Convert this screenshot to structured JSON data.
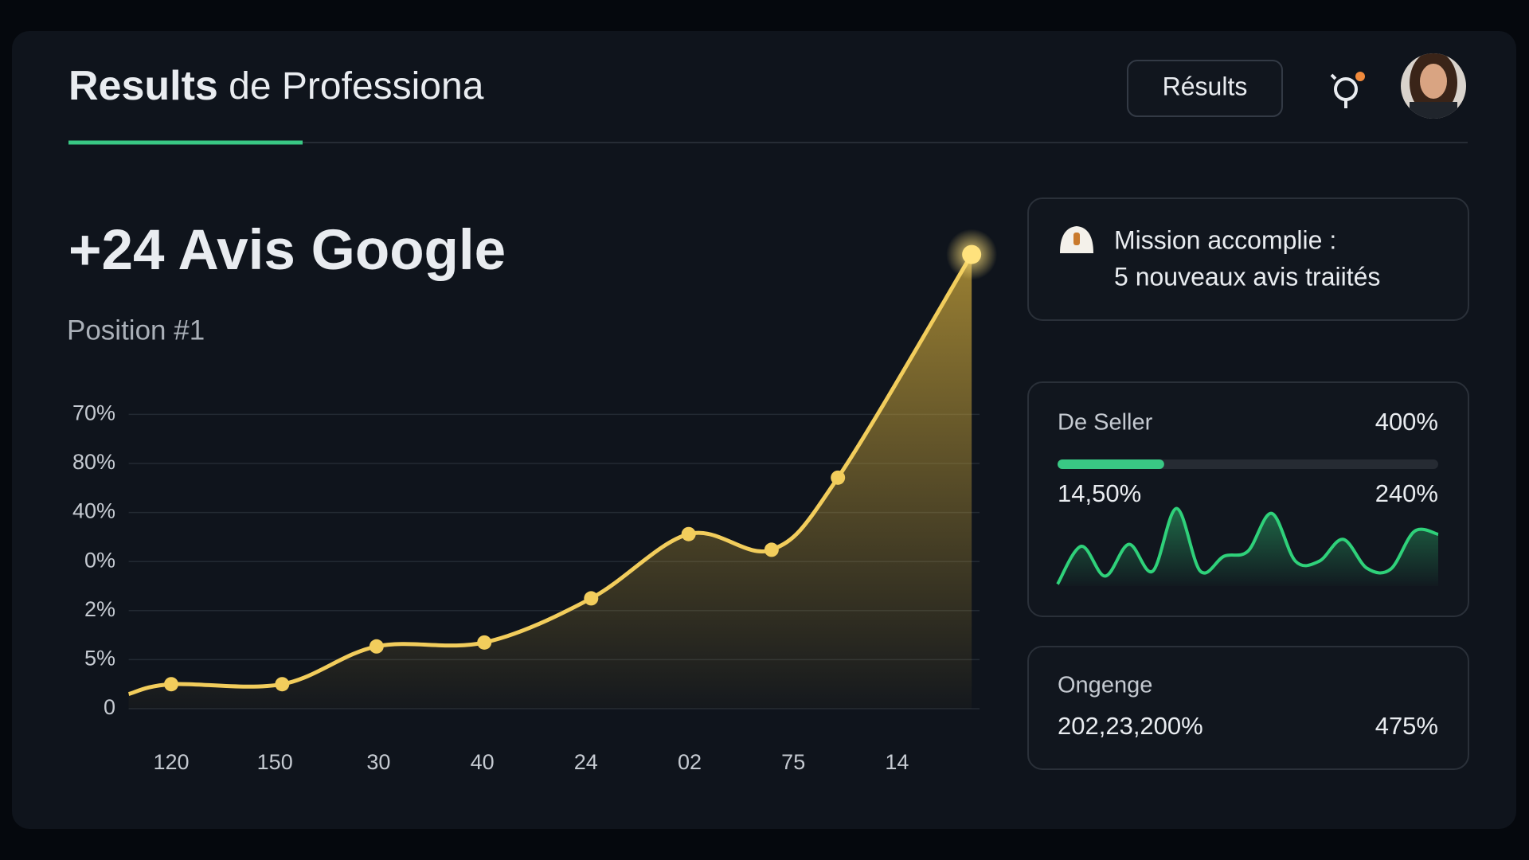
{
  "header": {
    "title_bold": "Results",
    "title_rest": " de Professiona",
    "button": "Résults"
  },
  "chart_data": {
    "type": "line",
    "title": "+24 Avis Google",
    "subtitle": "Position #1",
    "categories": [
      "120",
      "150",
      "30",
      "40",
      "24",
      "02",
      "75",
      "14"
    ],
    "x": [
      -0.41,
      0,
      1.07,
      1.98,
      3.02,
      4.05,
      4.99,
      5.79,
      6.43,
      7.72
    ],
    "series": [
      {
        "color": "#f2cd5c",
        "values": [
          0.3,
          0.5,
          0.5,
          1.27,
          1.35,
          2.25,
          3.56,
          3.24,
          4.71,
          9.26
        ]
      }
    ],
    "xlim": [
      -0.41,
      7.75
    ],
    "ylim": [
      0,
      10
    ],
    "yticks": [
      0,
      {
        "value": 1,
        "label": "5%"
      },
      {
        "value": 2,
        "label": "2%"
      },
      {
        "value": 3,
        "label": "0%"
      },
      {
        "value": 4,
        "label": "40%"
      },
      {
        "value": 5,
        "label": "80%"
      },
      {
        "value": 6,
        "label": "70%"
      }
    ],
    "grid": true
  },
  "cards": {
    "mission": {
      "line1": "Mission accomplie :",
      "line2": "5 nouveaux avis traiités"
    },
    "seller": {
      "label": "De Seller",
      "value": "400%",
      "progress": 0.28,
      "left": "14,50%",
      "right": "240%",
      "spark": [
        2,
        40,
        10,
        42,
        15,
        78,
        15,
        30,
        35,
        73,
        25,
        25,
        47,
        18,
        17,
        55,
        52
      ],
      "spark_color": "#2fd17a"
    },
    "ongenge": {
      "label": "Ongenge",
      "left": "202,23,200%",
      "right": "475%"
    }
  }
}
